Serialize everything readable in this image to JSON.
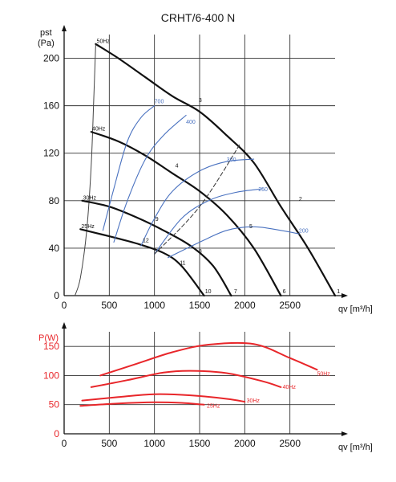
{
  "title": "CRHT/6-400 N",
  "colors": {
    "black": "#111111",
    "blue": "#4a72c0",
    "red": "#e8262a",
    "grid": "#333333",
    "system": "#333333"
  },
  "chart_data": [
    {
      "type": "line",
      "ylabel_lines": [
        "pst",
        "(Pa)"
      ],
      "xlabel": "qv [m³/h]",
      "xlim": [
        0,
        3000
      ],
      "ylim": [
        0,
        220
      ],
      "xticks": [
        0,
        500,
        1000,
        1500,
        2000,
        2500
      ],
      "yticks": [
        0,
        40,
        80,
        120,
        160,
        200
      ],
      "grid": true,
      "series": [
        {
          "name": "50Hz",
          "style": "fan",
          "points": [
            [
              350,
              212
            ],
            [
              600,
              200
            ],
            [
              900,
              184
            ],
            [
              1200,
              168
            ],
            [
              1500,
              155
            ],
            [
              1800,
              135
            ],
            [
              2100,
              112
            ],
            [
              2400,
              75
            ],
            [
              2700,
              40
            ],
            [
              3000,
              0
            ]
          ]
        },
        {
          "name": "40Hz",
          "style": "fan",
          "points": [
            [
              300,
              138
            ],
            [
              600,
              130
            ],
            [
              900,
              118
            ],
            [
              1200,
              103
            ],
            [
              1500,
              88
            ],
            [
              1800,
              68
            ],
            [
              2100,
              40
            ],
            [
              2400,
              0
            ]
          ]
        },
        {
          "name": "30Hz",
          "style": "fan",
          "points": [
            [
              200,
              80
            ],
            [
              500,
              75
            ],
            [
              800,
              66
            ],
            [
              1100,
              55
            ],
            [
              1400,
              42
            ],
            [
              1650,
              25
            ],
            [
              1850,
              0
            ]
          ]
        },
        {
          "name": "25Hz",
          "style": "fan",
          "points": [
            [
              180,
              56
            ],
            [
              500,
              50
            ],
            [
              800,
              44
            ],
            [
              1100,
              36
            ],
            [
              1300,
              25
            ],
            [
              1550,
              0
            ]
          ]
        },
        {
          "name": "700",
          "style": "blue",
          "points": [
            [
              430,
              55
            ],
            [
              550,
              90
            ],
            [
              700,
              130
            ],
            [
              850,
              150
            ],
            [
              1000,
              160
            ]
          ]
        },
        {
          "name": "400",
          "style": "blue",
          "points": [
            [
              550,
              45
            ],
            [
              700,
              80
            ],
            [
              900,
              115
            ],
            [
              1100,
              135
            ],
            [
              1350,
              152
            ]
          ]
        },
        {
          "name": "300",
          "style": "blue",
          "points": [
            [
              850,
              42
            ],
            [
              1000,
              65
            ],
            [
              1200,
              88
            ],
            [
              1500,
              105
            ],
            [
              1800,
              113
            ],
            [
              2100,
              115
            ]
          ]
        },
        {
          "name": "250",
          "style": "blue",
          "points": [
            [
              1000,
              35
            ],
            [
              1300,
              65
            ],
            [
              1600,
              80
            ],
            [
              1900,
              87
            ],
            [
              2200,
              90
            ]
          ]
        },
        {
          "name": "200",
          "style": "blue",
          "points": [
            [
              1150,
              32
            ],
            [
              1500,
              45
            ],
            [
              1800,
              55
            ],
            [
              2100,
              58
            ],
            [
              2400,
              55
            ],
            [
              2600,
              52
            ]
          ]
        },
        {
          "name": "system",
          "style": "dash",
          "points": [
            [
              1000,
              35
            ],
            [
              1500,
              75
            ],
            [
              1950,
              128
            ]
          ]
        }
      ],
      "edge_curve": [
        [
          120,
          0
        ],
        [
          180,
          15
        ],
        [
          250,
          55
        ],
        [
          300,
          110
        ],
        [
          330,
          170
        ],
        [
          350,
          212
        ]
      ],
      "annotations": [
        {
          "text": "50Hz",
          "x": 360,
          "y": 213,
          "color": "black"
        },
        {
          "text": "40Hz",
          "x": 310,
          "y": 139,
          "color": "black"
        },
        {
          "text": "30Hz",
          "x": 210,
          "y": 81,
          "color": "black"
        },
        {
          "text": "25Hz",
          "x": 190,
          "y": 57,
          "color": "black"
        },
        {
          "text": "1",
          "x": 3020,
          "y": 2,
          "color": "black"
        },
        {
          "text": "2",
          "x": 2600,
          "y": 80,
          "color": "black"
        },
        {
          "text": "3",
          "x": 1490,
          "y": 163,
          "color": "black"
        },
        {
          "text": "4",
          "x": 1230,
          "y": 108,
          "color": "black"
        },
        {
          "text": "5",
          "x": 2050,
          "y": 57,
          "color": "black"
        },
        {
          "text": "6",
          "x": 2420,
          "y": 2,
          "color": "black"
        },
        {
          "text": "7",
          "x": 1880,
          "y": 2,
          "color": "black"
        },
        {
          "text": "8",
          "x": 1490,
          "y": 36,
          "color": "black"
        },
        {
          "text": "9",
          "x": 1010,
          "y": 63,
          "color": "black"
        },
        {
          "text": "10",
          "x": 1560,
          "y": 2,
          "color": "black"
        },
        {
          "text": "11",
          "x": 1280,
          "y": 26,
          "color": "black"
        },
        {
          "text": "12",
          "x": 870,
          "y": 45,
          "color": "black"
        },
        {
          "text": "700",
          "x": 1000,
          "y": 162,
          "color": "blue"
        },
        {
          "text": "400",
          "x": 1350,
          "y": 145,
          "color": "blue"
        },
        {
          "text": "300",
          "x": 1800,
          "y": 113,
          "color": "blue"
        },
        {
          "text": "250",
          "x": 2150,
          "y": 88,
          "color": "blue"
        },
        {
          "text": "200",
          "x": 2600,
          "y": 53,
          "color": "blue"
        }
      ]
    },
    {
      "type": "line",
      "ylabel": "P(W)",
      "xlabel": "qv [m³/h]",
      "xlim": [
        0,
        3000
      ],
      "ylim": [
        0,
        175
      ],
      "xticks": [
        0,
        500,
        1000,
        1500,
        2000,
        2500
      ],
      "yticks": [
        0,
        50,
        100,
        150
      ],
      "grid": true,
      "series": [
        {
          "name": "50Hz",
          "points": [
            [
              400,
              100
            ],
            [
              800,
              120
            ],
            [
              1200,
              140
            ],
            [
              1600,
              153
            ],
            [
              2100,
              154
            ],
            [
              2500,
              130
            ],
            [
              2800,
              110
            ]
          ]
        },
        {
          "name": "40Hz",
          "points": [
            [
              300,
              80
            ],
            [
              700,
              92
            ],
            [
              1100,
              105
            ],
            [
              1400,
              108
            ],
            [
              1800,
              104
            ],
            [
              2200,
              90
            ],
            [
              2400,
              80
            ]
          ]
        },
        {
          "name": "30Hz",
          "points": [
            [
              200,
              57
            ],
            [
              600,
              63
            ],
            [
              1000,
              68
            ],
            [
              1400,
              66
            ],
            [
              1800,
              60
            ],
            [
              2000,
              55
            ]
          ]
        },
        {
          "name": "25Hz",
          "points": [
            [
              180,
              48
            ],
            [
              600,
              52
            ],
            [
              1000,
              54
            ],
            [
              1300,
              53
            ],
            [
              1550,
              50
            ]
          ]
        }
      ],
      "annotations": [
        {
          "text": "50Hz",
          "x": 2800,
          "y": 100
        },
        {
          "text": "40Hz",
          "x": 2420,
          "y": 77
        },
        {
          "text": "30Hz",
          "x": 2020,
          "y": 54
        },
        {
          "text": "25Hz",
          "x": 1580,
          "y": 45
        }
      ]
    }
  ]
}
